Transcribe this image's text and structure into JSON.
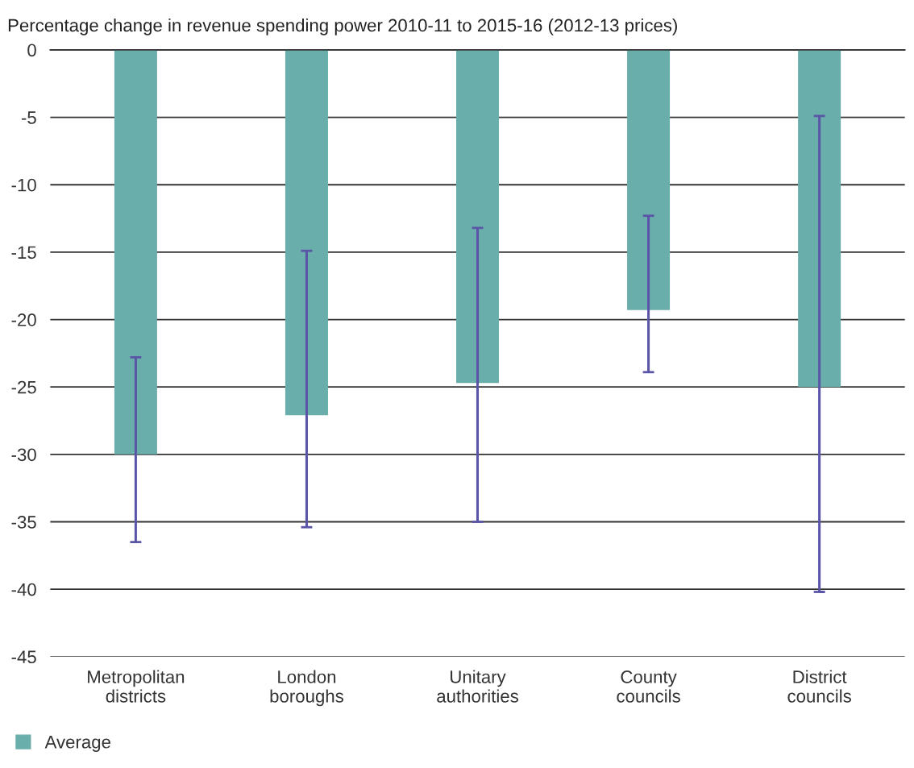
{
  "chart_data": {
    "type": "bar",
    "title": "Percentage change in revenue spending power 2010-11 to 2015-16 (2012-13 prices)",
    "categories": [
      "Metropolitan\ndistricts",
      "London\nboroughs",
      "Unitary\nauthorities",
      "County\ncouncils",
      "District\ncouncils"
    ],
    "series": [
      {
        "name": "Average",
        "color": "#6aaeab",
        "values": [
          -30.0,
          -27.1,
          -24.7,
          -19.3,
          -25.0
        ],
        "errors": [
          [
            -36.5,
            -22.8
          ],
          [
            -35.4,
            -14.9
          ],
          [
            -35.0,
            -13.2
          ],
          [
            -23.9,
            -12.3
          ],
          [
            -40.2,
            -4.9
          ]
        ]
      }
    ],
    "ylim": [
      -45,
      0
    ],
    "yticks": [
      -45,
      -40,
      -35,
      -30,
      -25,
      -20,
      -15,
      -10,
      -5,
      0
    ],
    "grid": "y",
    "legend": "bottom left"
  }
}
